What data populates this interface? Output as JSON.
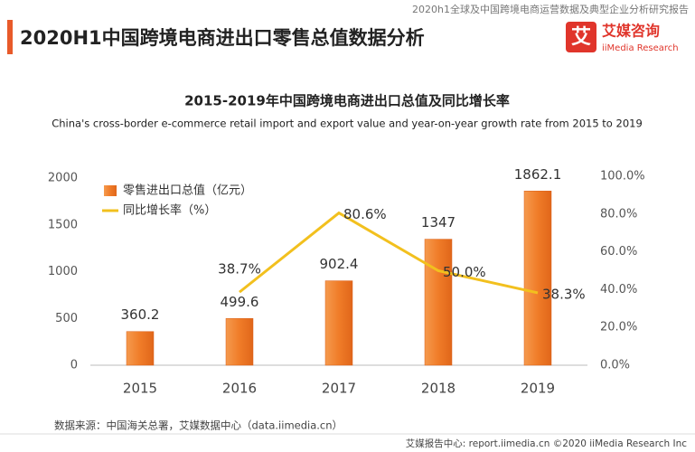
{
  "header": {
    "report_title": "2020h1全球及中国跨境电商运营数据及典型企业分析研究报告",
    "title": "2020H1中国跨境电商进出口零售总值数据分析",
    "logo_mark": "艾",
    "logo_name": "艾媒咨询",
    "logo_sub": "iiMedia Research"
  },
  "chart_data": {
    "type": "bar",
    "title": "2015-2019年中国跨境电商进出口总值及同比增长率",
    "subtitle": "China's cross-border e-commerce retail import and export value and year-on-year growth rate from 2015 to 2019",
    "categories": [
      "2015",
      "2016",
      "2017",
      "2018",
      "2019"
    ],
    "series": [
      {
        "name": "零售进出口总值（亿元）",
        "type": "bar",
        "color": "#f07c28",
        "values": [
          360.2,
          499.6,
          902.4,
          1347,
          1862.1
        ]
      },
      {
        "name": "同比增长率（%）",
        "type": "line",
        "axis": "y2",
        "color": "#f2c01e",
        "values": [
          null,
          38.7,
          80.6,
          50.0,
          38.3
        ],
        "value_labels": [
          null,
          "38.7%",
          "80.6%",
          "50.0%",
          "38.3%"
        ]
      }
    ],
    "ylim": [
      0,
      2000
    ],
    "yticks": [
      0,
      500,
      1000,
      1500,
      2000
    ],
    "y2lim": [
      0,
      100
    ],
    "y2ticks": [
      {
        "value": 0,
        "label": "0.0%"
      },
      {
        "value": 20,
        "label": "20.0%"
      },
      {
        "value": 40,
        "label": "40.0%"
      },
      {
        "value": 60,
        "label": "60.0%"
      },
      {
        "value": 80,
        "label": "80.0%"
      },
      {
        "value": 100,
        "label": "100.0%"
      }
    ],
    "grid": false,
    "legend": "top-left"
  },
  "footer": {
    "source": "数据来源：中国海关总署，艾媒数据中心（data.iimedia.cn）",
    "site": "艾媒报告中心: report.iimedia.cn  ©2020  iiMedia Research Inc"
  }
}
